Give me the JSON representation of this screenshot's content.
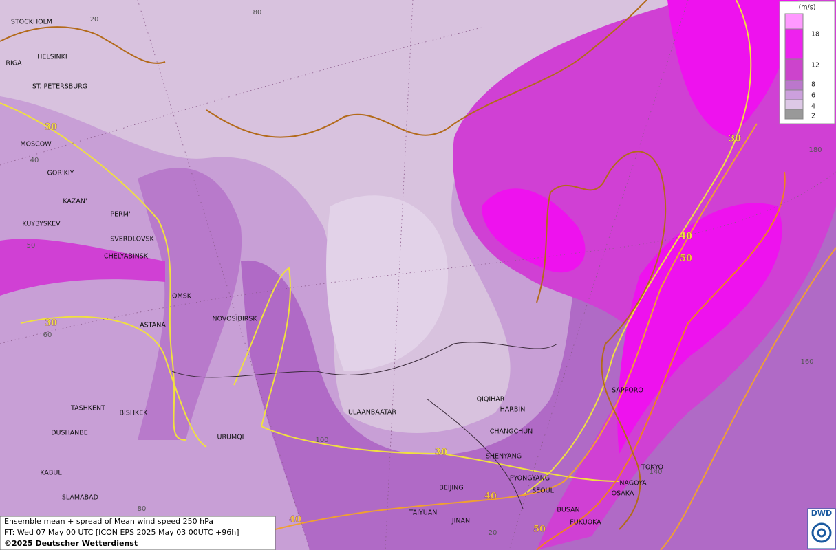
{
  "map": {
    "cities": [
      "STOCKHOLM",
      "HELSINKI",
      "RIGA",
      "ST. PETERSBURG",
      "MOSCOW",
      "GOR'KIY",
      "KAZAN'",
      "PERM'",
      "KUYBYSKEV",
      "SVERDLOVSK",
      "CHELYABINSK",
      "OMSK",
      "NOVOSIBIRSK",
      "ASTANA",
      "TASHKENT",
      "BISHKEK",
      "DUSHANBE",
      "URUMQI",
      "ULAANBAATAR",
      "QIQIHAR",
      "HARBIN",
      "CHANGCHUN",
      "SHENYANG",
      "PYONGYANG",
      "SEOUL",
      "BEIJING",
      "TAIYUAN",
      "JINAN",
      "BUSAN",
      "FUKUOKA",
      "SAPPORO",
      "TOKYO",
      "NAGOYA",
      "OSAKA",
      "KABUL",
      "ISLAMABAD"
    ],
    "graticule_labels": [
      20,
      80,
      40,
      50,
      60,
      100,
      80,
      20,
      140,
      160,
      180
    ],
    "contour_labels": [
      30,
      30,
      30,
      40,
      40,
      50,
      40,
      50,
      30
    ]
  },
  "legend": {
    "unit": "(m/s)",
    "ticks": [
      18,
      12,
      8,
      6,
      4,
      2
    ]
  },
  "caption": {
    "line1": "Ensemble mean + spread of Mean wind speed 250 hPa",
    "line2": "FT: Wed 07 May 00 UTC [ICON EPS 2025 May 03 00UTC +96h]",
    "line3": "©2025 Deutscher Wetterdienst"
  },
  "logo": "DWD"
}
